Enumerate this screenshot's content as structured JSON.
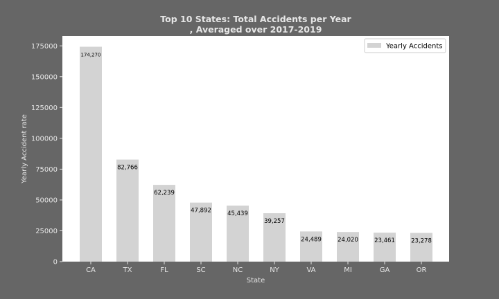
{
  "colors": {
    "background": "#666666",
    "plot_area": "#ffffff",
    "bar": "#d3d3d3",
    "light_text": "#e6e6e6",
    "dark_text": "#000000"
  },
  "chart_data": {
    "type": "bar",
    "title": "Top 10 States: Total Accidents per Year",
    "subtitle": ", Averaged over 2017-2019",
    "xlabel": "State",
    "ylabel": "Yearly Accident rate",
    "categories": [
      "CA",
      "TX",
      "FL",
      "SC",
      "NC",
      "NY",
      "VA",
      "MI",
      "GA",
      "OR"
    ],
    "series": [
      {
        "name": "Yearly Accidents",
        "values": [
          174270,
          82766,
          62239,
          47892,
          45439,
          39257,
          24489,
          24020,
          23461,
          23278
        ],
        "labels": [
          "174,270",
          "82,766",
          "62,239",
          "47,892",
          "45,439",
          "39,257",
          "24,489",
          "24,020",
          "23,461",
          "23,278"
        ]
      }
    ],
    "ylim": [
      0,
      183000
    ],
    "yticks": [
      0,
      25000,
      50000,
      75000,
      100000,
      125000,
      150000,
      175000
    ],
    "ytick_labels": [
      "0",
      "25000",
      "50000",
      "75000",
      "100000",
      "125000",
      "150000",
      "175000"
    ],
    "grid": false,
    "legend": "top-right"
  }
}
